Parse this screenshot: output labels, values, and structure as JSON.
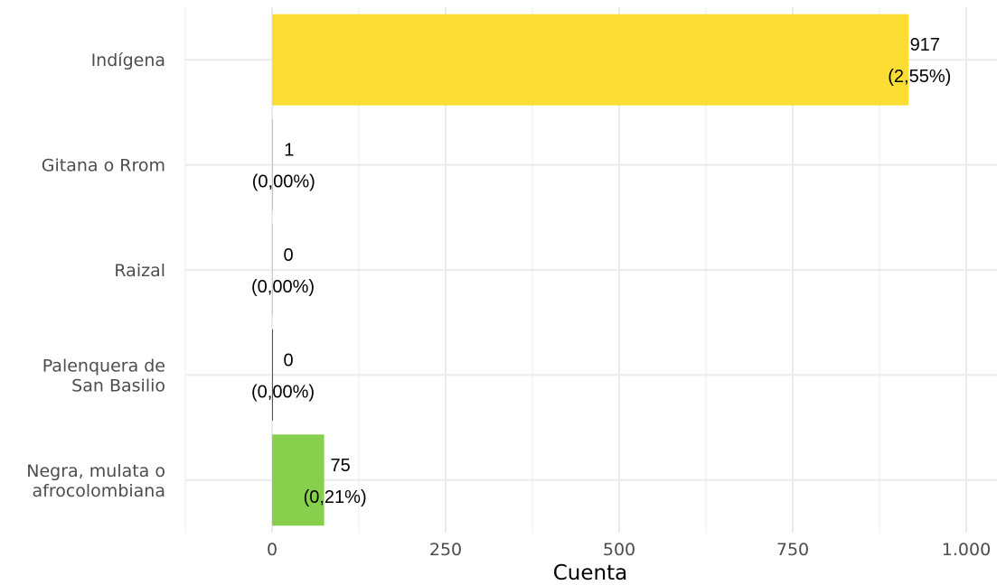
{
  "chart_data": {
    "type": "bar",
    "orientation": "horizontal",
    "categories": [
      "Indígena",
      "Gitana o Rrom",
      "Raizal",
      "Palenquera de San Basilio",
      "Negra, mulata o afrocolombiana"
    ],
    "category_lines": [
      [
        "Indígena"
      ],
      [
        "Gitana o Rrom"
      ],
      [
        "Raizal"
      ],
      [
        "Palenquera de",
        "San Basilio"
      ],
      [
        "Negra, mulata o",
        "afrocolombiana"
      ]
    ],
    "values": [
      917,
      1,
      0,
      0,
      75
    ],
    "value_labels": [
      "917",
      "1",
      "0",
      "0",
      "75"
    ],
    "percent_labels": [
      "(2,55%)",
      "(0,00%)",
      "(0,00%)",
      "(0,00%)",
      "(0,21%)"
    ],
    "colors": [
      "#fbdd33",
      "#a3cbe9",
      "#f4b6c2",
      "#c0202f",
      "#87d04d"
    ],
    "xlabel": "Cuenta",
    "ylabel": "",
    "xlim": [
      -125,
      1050
    ],
    "xticks": [
      0,
      250,
      500,
      750,
      1000
    ],
    "xtick_labels": [
      "0",
      "250",
      "500",
      "750",
      "1.000"
    ],
    "grid": true,
    "legend": "none"
  }
}
